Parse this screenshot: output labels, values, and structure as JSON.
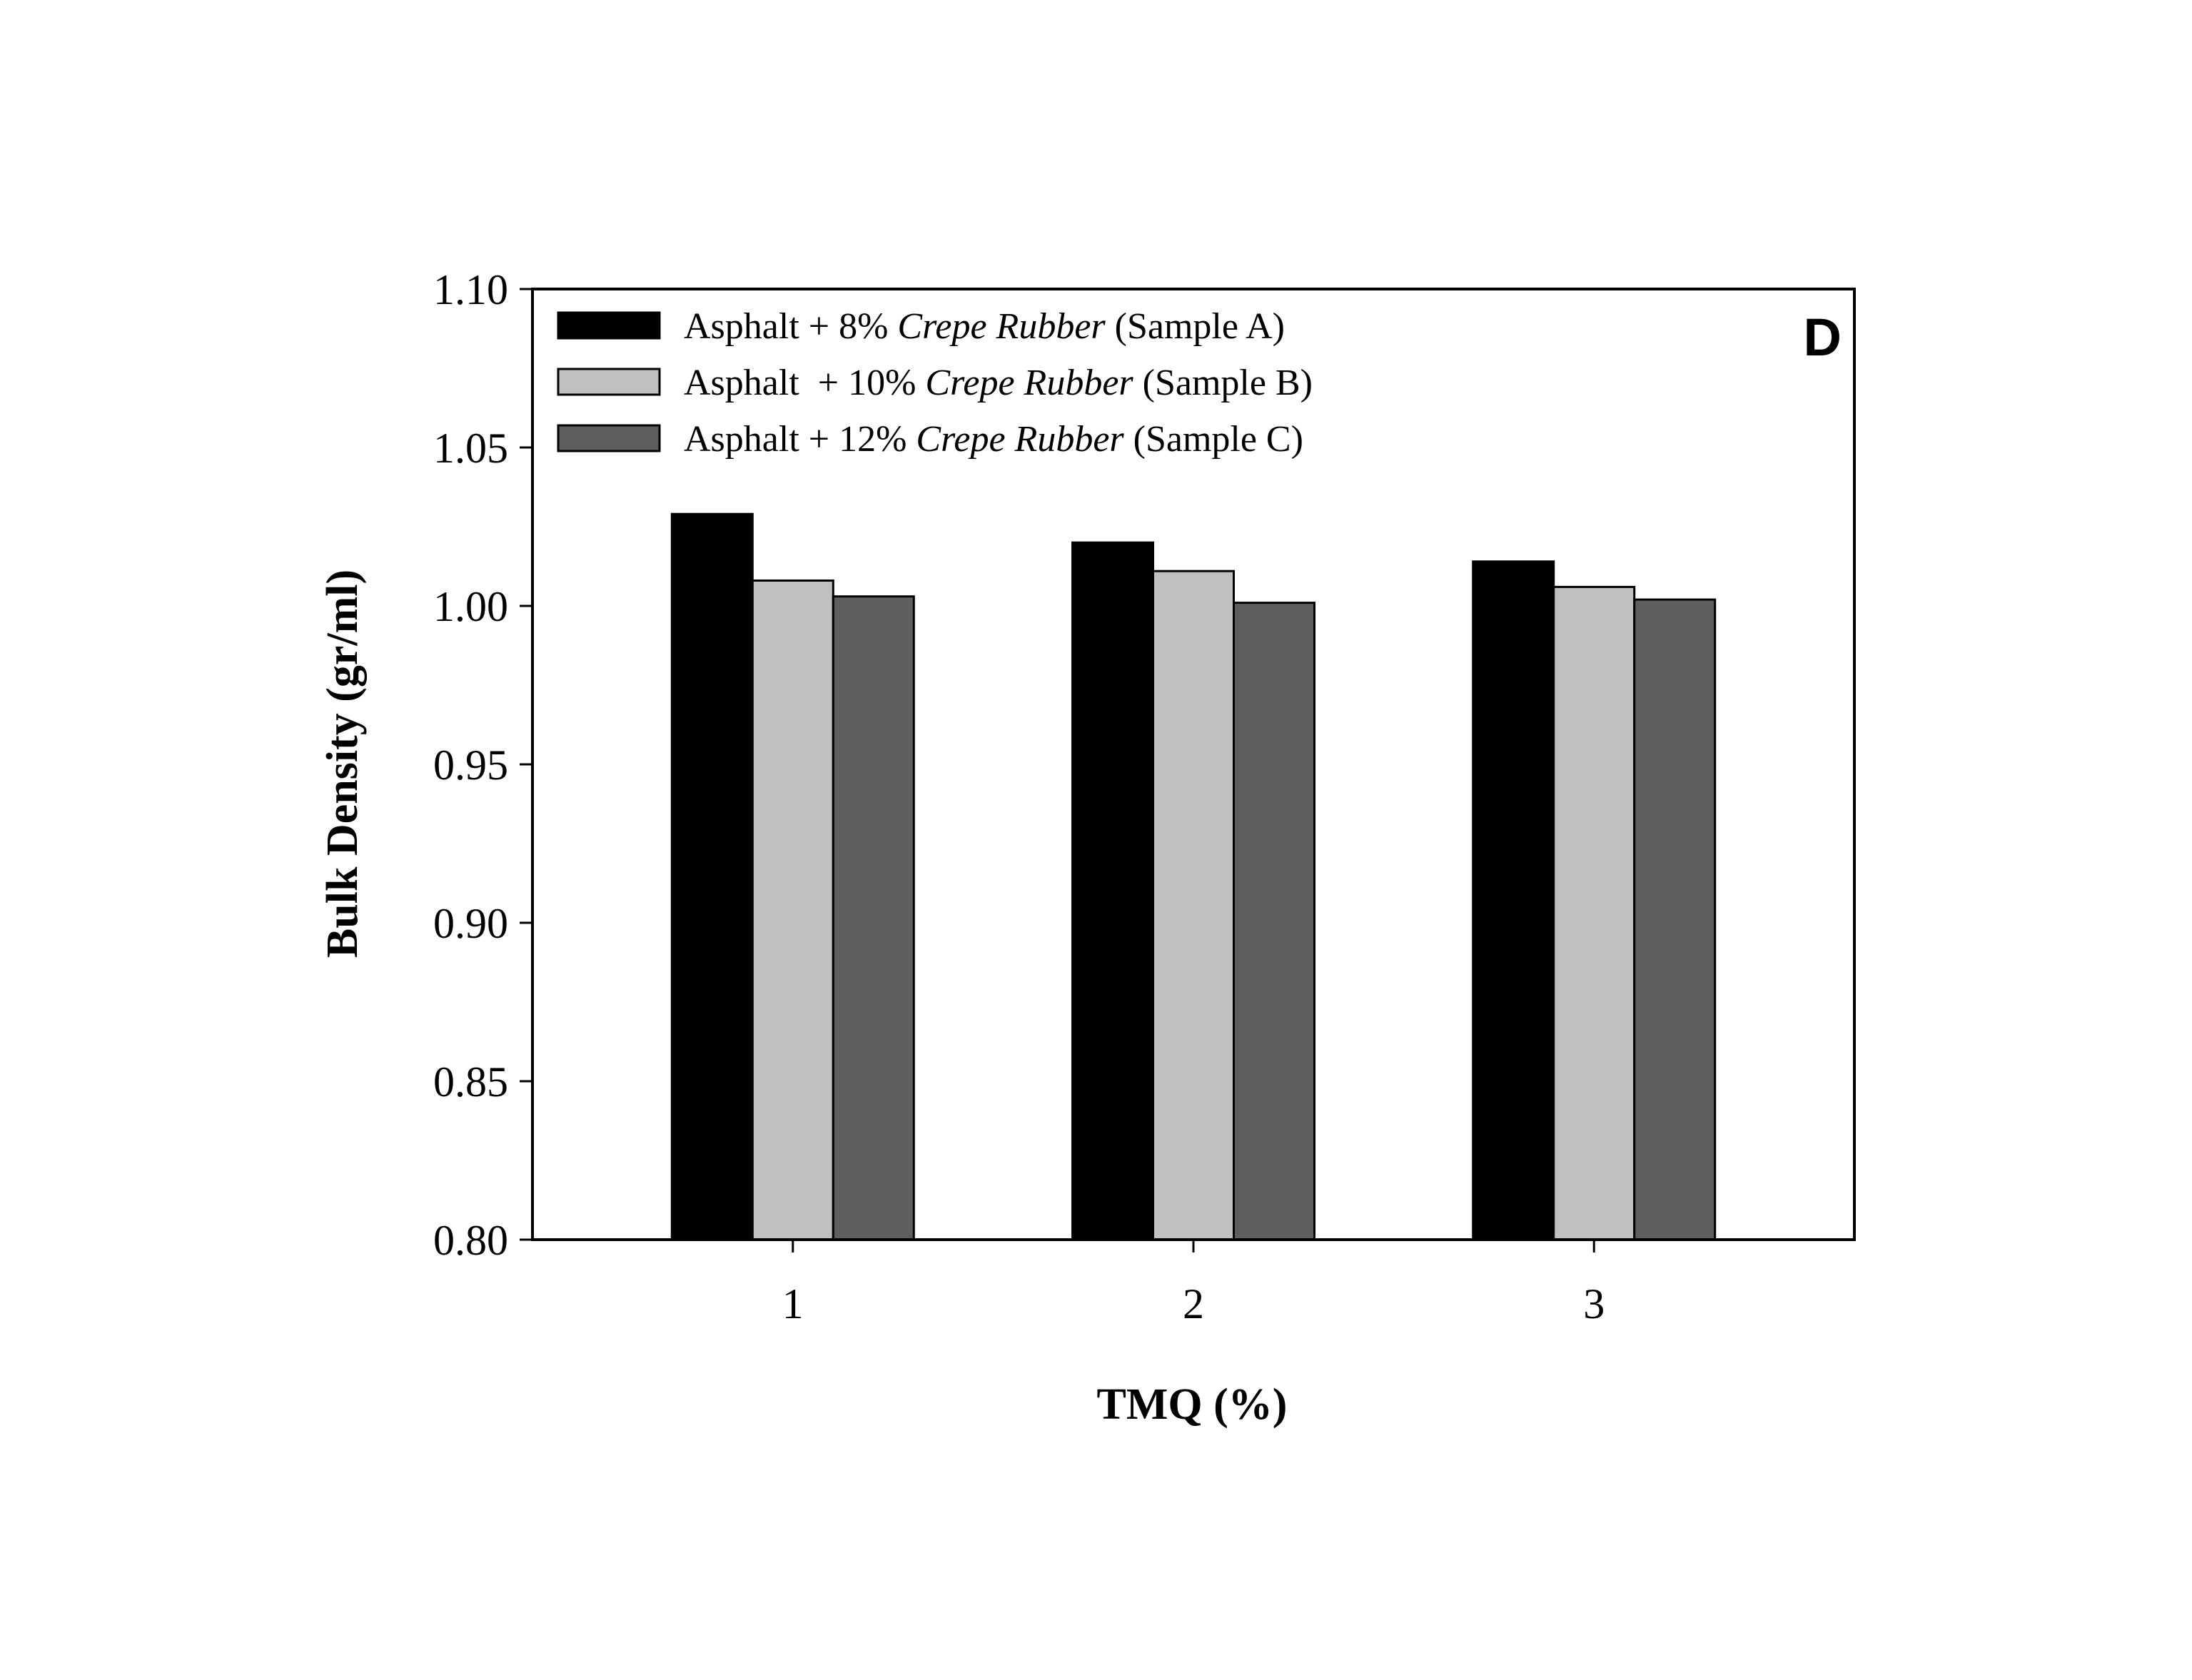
{
  "chart_data": {
    "type": "bar",
    "panel_label": "D",
    "xlabel": "TMQ (%)",
    "ylabel": "Bulk Density (gr/ml)",
    "categories": [
      "1",
      "2",
      "3"
    ],
    "ylim": [
      0.8,
      1.1
    ],
    "yticks": [
      "0.80",
      "0.85",
      "0.90",
      "0.95",
      "1.00",
      "1.05",
      "1.10"
    ],
    "legend_position": "top-left",
    "series": [
      {
        "name": "Asphalt + 8% Crepe Rubber (Sample A)",
        "name_prefix": "Asphalt + 8% ",
        "name_italic": "Crepe Rubber",
        "name_suffix": " (Sample A)",
        "color": "#000000",
        "values": [
          1.029,
          1.02,
          1.014
        ]
      },
      {
        "name": "Asphalt  + 10% Crepe Rubber (Sample B)",
        "name_prefix": "Asphalt  + 10% ",
        "name_italic": "Crepe Rubber",
        "name_suffix": " (Sample B)",
        "color": "#c0c0c0",
        "values": [
          1.008,
          1.011,
          1.006
        ]
      },
      {
        "name": "Asphalt + 12% Crepe Rubber (Sample C)",
        "name_prefix": "Asphalt + 12% ",
        "name_italic": "Crepe Rubber",
        "name_suffix": " (Sample C)",
        "color": "#5e5e5e",
        "values": [
          1.003,
          1.001,
          1.002
        ]
      }
    ]
  }
}
